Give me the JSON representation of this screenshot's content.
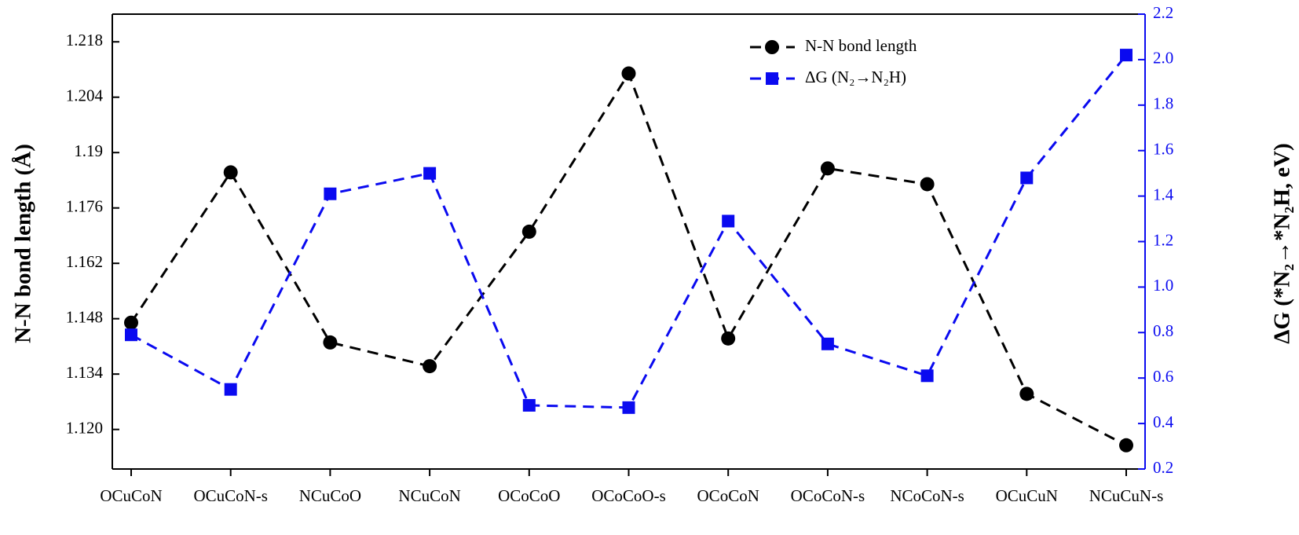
{
  "chart_data": {
    "type": "line",
    "categories": [
      "OCuCoN",
      "OCuCoN-s",
      "NCuCoO",
      "NCuCoN",
      "OCoCoO",
      "OCoCoO-s",
      "OCoCoN",
      "OCoCoN-s",
      "NCoCoN-s",
      "OCuCuN",
      "NCuCuN-s"
    ],
    "series": [
      {
        "name": "N-N bond length",
        "color": "#000000",
        "marker": "circle",
        "axis": "y",
        "values": [
          1.147,
          1.185,
          1.142,
          1.136,
          1.17,
          1.21,
          1.143,
          1.186,
          1.182,
          1.129,
          1.116
        ]
      },
      {
        "name": "ΔG (N₂→N₂H)",
        "color": "#0a0af0",
        "marker": "square",
        "axis": "y2",
        "values": [
          0.79,
          0.55,
          1.41,
          1.5,
          0.48,
          0.47,
          1.29,
          0.75,
          0.61,
          1.48,
          2.02
        ]
      }
    ],
    "ylabel": "N-N bond length (Å)",
    "y2label": "ΔG (*N₂→*N₂H, eV)",
    "ylim": [
      1.11,
      1.225
    ],
    "yticks": [
      {
        "value": 1.12,
        "label": "1.120"
      },
      1.134,
      1.148,
      1.162,
      1.176,
      1.19,
      {
        "value": 1.204,
        "label": "1.204"
      },
      1.218
    ],
    "y2lim": [
      0.2,
      2.2
    ],
    "y2ticks": [
      0.2,
      0.4,
      0.6,
      0.8,
      {
        "value": 1,
        "label": "1.0"
      },
      1.2,
      1.4,
      1.6,
      1.8,
      {
        "value": 2,
        "label": "2.0"
      },
      2.2
    ],
    "y2color": "#0a0af0",
    "legend": "upper right"
  }
}
